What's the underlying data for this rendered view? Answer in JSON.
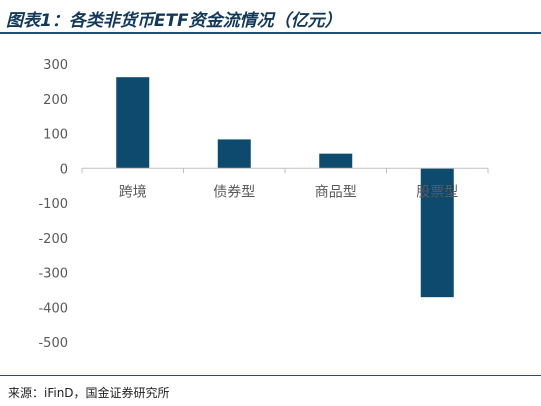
{
  "header": {
    "title": "图表1：各类非货币ETF资金流情况（亿元）"
  },
  "footer": {
    "source": "来源：iFinD，国金证券研究所"
  },
  "colors": {
    "bar": "#0d4a6e",
    "axis": "#bfbfbf",
    "tick_text": "#595959",
    "title": "#12395a"
  },
  "chart_data": {
    "type": "bar",
    "title": "",
    "xlabel": "",
    "ylabel": "",
    "categories": [
      "跨境",
      "债券型",
      "商品型",
      "股票型"
    ],
    "values": [
      262,
      83,
      42,
      -371
    ],
    "ylim": [
      -500,
      300
    ],
    "yticks": [
      300,
      200,
      100,
      0,
      -100,
      -200,
      -300,
      -400,
      -500
    ],
    "ytick_labels": [
      "300",
      "200",
      "100",
      "0",
      "-100",
      "-200",
      "-300",
      "-400",
      "-500"
    ],
    "grid": false,
    "legend": "none"
  }
}
